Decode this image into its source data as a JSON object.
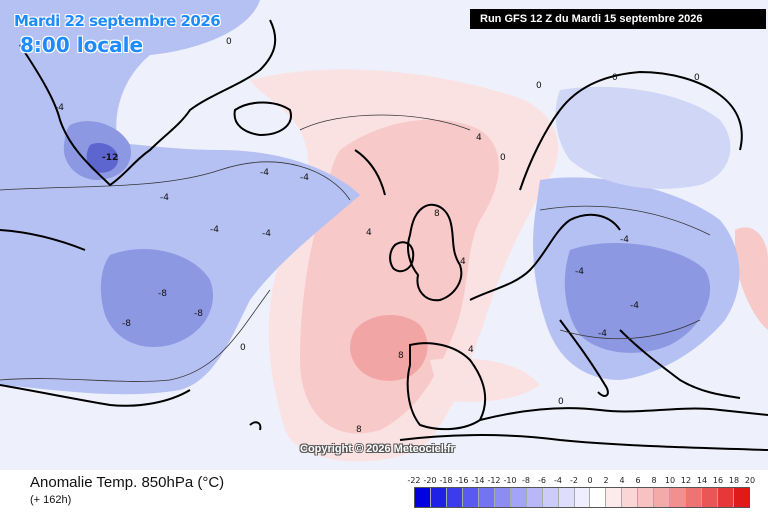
{
  "header": {
    "date": "Mardi 22 septembre 2026",
    "time": "8:00 locale",
    "run": "Run GFS 12 Z du Mardi 15 septembre 2026"
  },
  "map": {
    "copyright": "Copyright © 2026 Meteociel.fr",
    "contour_labels": [
      "-12",
      "-8",
      "-4",
      "0",
      "4",
      "8"
    ]
  },
  "footer": {
    "variable": "Anomalie Temp. 850hPa (°C)",
    "lead_time": "(+ 162h)"
  },
  "legend": {
    "ticks": [
      "-22",
      "-20",
      "-18",
      "-16",
      "-14",
      "-12",
      "-10",
      "-8",
      "-6",
      "-4",
      "-2",
      "0",
      "2",
      "4",
      "6",
      "8",
      "10",
      "12",
      "14",
      "16",
      "18",
      "20"
    ],
    "colors": [
      "#0000e0",
      "#1f1fe8",
      "#3c3cec",
      "#5a5af0",
      "#7474f2",
      "#8c8cf4",
      "#a4a4f6",
      "#b8b8f8",
      "#ccccfa",
      "#dedefc",
      "#eeeefe",
      "#ffffff",
      "#fdeaea",
      "#fbd6d6",
      "#f8c2c2",
      "#f5aaaa",
      "#f29090",
      "#ee7474",
      "#ea5656",
      "#e63838",
      "#e01a1a"
    ]
  },
  "colors": {
    "cold_field": "#b6c1f3",
    "cold_strong": "#8d98e2",
    "cold_core": "#5d65cf",
    "neutral": "#eef0fb",
    "warm_light": "#fbe2e2",
    "warm_field": "#f8c9c9",
    "warm_strong": "#f2a5a5",
    "label_color": "#1e8cff"
  }
}
